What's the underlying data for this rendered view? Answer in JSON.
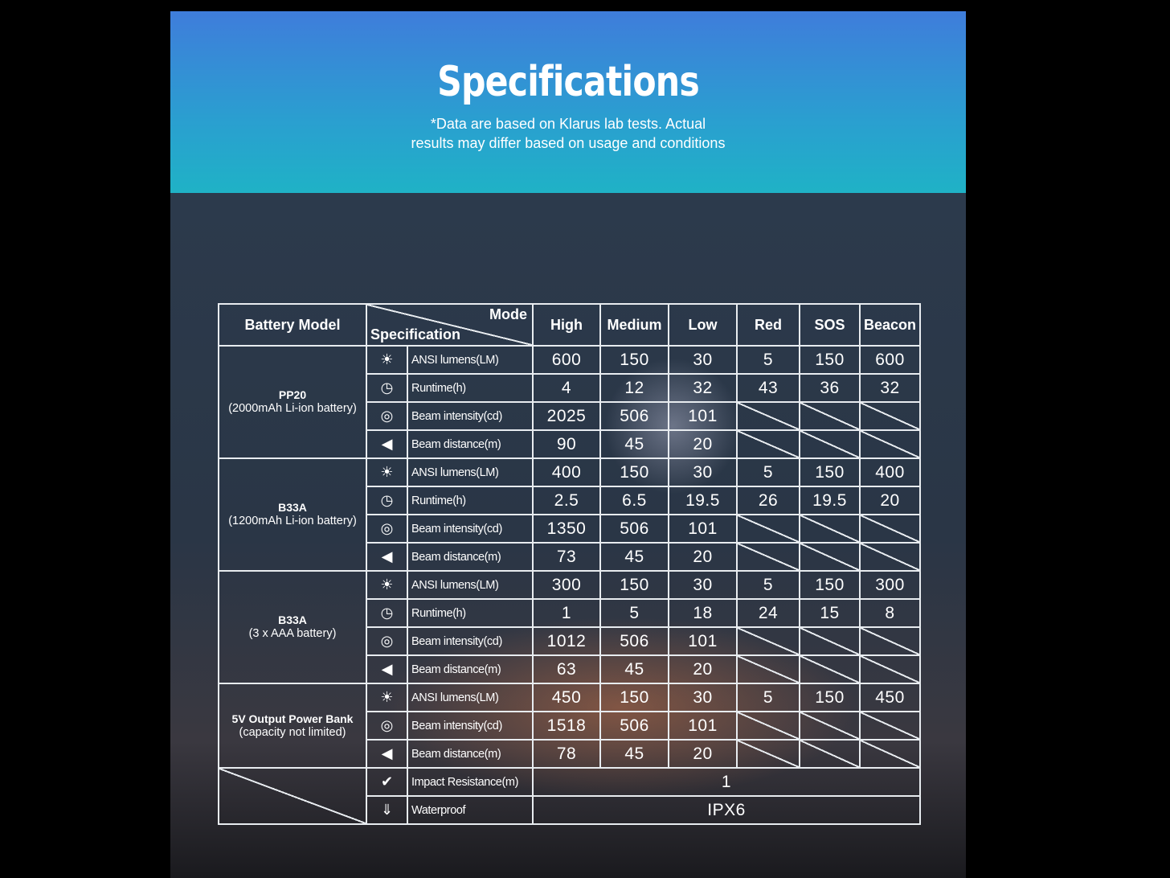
{
  "header": {
    "title": "Specifications",
    "subtitle_line1": "*Data are based on Klarus lab tests. Actual",
    "subtitle_line2": "results may differ based on usage and conditions"
  },
  "table": {
    "battery_model_label": "Battery Model",
    "mode_label": "Mode",
    "specification_label": "Specification",
    "modes": [
      "High",
      "Medium",
      "Low",
      "Red",
      "SOS",
      "Beacon"
    ],
    "spec_labels": {
      "lumens": {
        "label": "ANSI lumens(LM)",
        "icon": "sunburst-icon"
      },
      "runtime": {
        "label": "Runtime(h)",
        "icon": "clock-icon"
      },
      "intensity": {
        "label": "Beam intensity(cd)",
        "icon": "target-icon"
      },
      "distance": {
        "label": "Beam distance(m)",
        "icon": "beam-distance-icon"
      }
    },
    "groups": [
      {
        "name": "PP20",
        "detail": "(2000mAh Li-ion battery)",
        "rows": [
          {
            "spec": "lumens",
            "values": [
              "600",
              "150",
              "30",
              "5",
              "150",
              "600"
            ]
          },
          {
            "spec": "runtime",
            "values": [
              "4",
              "12",
              "32",
              "43",
              "36",
              "32"
            ]
          },
          {
            "spec": "intensity",
            "values": [
              "2025",
              "506",
              "101",
              null,
              null,
              null
            ]
          },
          {
            "spec": "distance",
            "values": [
              "90",
              "45",
              "20",
              null,
              null,
              null
            ]
          }
        ]
      },
      {
        "name": "B33A",
        "detail": "(1200mAh Li-ion battery)",
        "rows": [
          {
            "spec": "lumens",
            "values": [
              "400",
              "150",
              "30",
              "5",
              "150",
              "400"
            ]
          },
          {
            "spec": "runtime",
            "values": [
              "2.5",
              "6.5",
              "19.5",
              "26",
              "19.5",
              "20"
            ]
          },
          {
            "spec": "intensity",
            "values": [
              "1350",
              "506",
              "101",
              null,
              null,
              null
            ]
          },
          {
            "spec": "distance",
            "values": [
              "73",
              "45",
              "20",
              null,
              null,
              null
            ]
          }
        ]
      },
      {
        "name": "B33A",
        "detail": "(3 x AAA battery)",
        "rows": [
          {
            "spec": "lumens",
            "values": [
              "300",
              "150",
              "30",
              "5",
              "150",
              "300"
            ]
          },
          {
            "spec": "runtime",
            "values": [
              "1",
              "5",
              "18",
              "24",
              "15",
              "8"
            ]
          },
          {
            "spec": "intensity",
            "values": [
              "1012",
              "506",
              "101",
              null,
              null,
              null
            ]
          },
          {
            "spec": "distance",
            "values": [
              "63",
              "45",
              "20",
              null,
              null,
              null
            ]
          }
        ]
      },
      {
        "name": "5V Output Power Bank",
        "detail": "(capacity not limited)",
        "rows": [
          {
            "spec": "lumens",
            "values": [
              "450",
              "150",
              "30",
              "5",
              "150",
              "450"
            ]
          },
          {
            "spec": "intensity",
            "values": [
              "1518",
              "506",
              "101",
              null,
              null,
              null
            ]
          },
          {
            "spec": "distance",
            "values": [
              "78",
              "45",
              "20",
              null,
              null,
              null
            ]
          }
        ]
      }
    ],
    "general": [
      {
        "label": "Impact Resistance(m)",
        "icon": "impact-check-icon",
        "value": "1"
      },
      {
        "label": "Waterproof",
        "icon": "waterproof-icon",
        "value": "IPX6"
      }
    ]
  }
}
